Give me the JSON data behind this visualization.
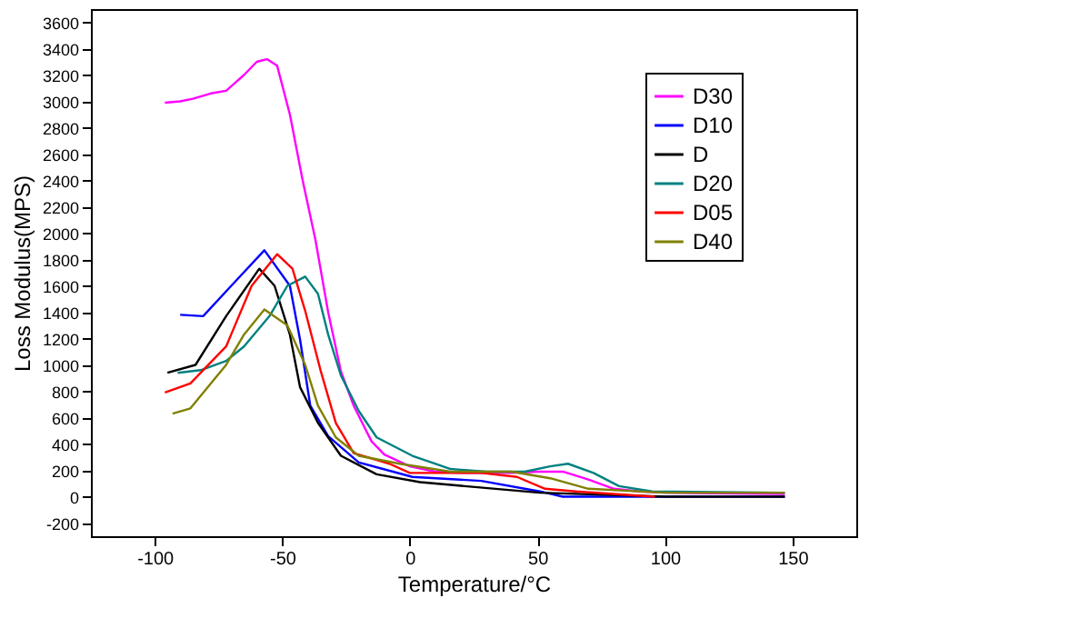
{
  "chart_data": {
    "type": "line",
    "xlabel": "Temperature/°C",
    "ylabel": "Loss Modulus(MPS)",
    "xlim": [
      -125,
      175
    ],
    "xticks": [
      -100,
      -50,
      0,
      50,
      100,
      150
    ],
    "ylim": [
      -300,
      3700
    ],
    "yticks": [
      -200,
      0,
      200,
      400,
      600,
      800,
      1000,
      1200,
      1400,
      1600,
      1800,
      2000,
      2200,
      2400,
      2600,
      2800,
      3000,
      3200,
      3400,
      3600
    ],
    "grid": false,
    "legend": "top right",
    "marker": "none",
    "line_style": "solid",
    "series": [
      {
        "name": "D30",
        "color": "#ff00ff",
        "x": [
          -96,
          -90,
          -85,
          -78,
          -72,
          -65,
          -60,
          -56,
          -52,
          -47,
          -42,
          -37,
          -32,
          -27,
          -22,
          -15,
          -10,
          0,
          10,
          20,
          40,
          50,
          60,
          70,
          80,
          90,
          100,
          147
        ],
        "values": [
          2990,
          3000,
          3020,
          3060,
          3080,
          3200,
          3300,
          3320,
          3270,
          2900,
          2400,
          1950,
          1400,
          950,
          690,
          420,
          320,
          230,
          190,
          180,
          180,
          190,
          190,
          130,
          60,
          40,
          30,
          20
        ]
      },
      {
        "name": "D10",
        "color": "#0000ff",
        "x": [
          -90,
          -81,
          -70,
          -57,
          -47,
          -43,
          -39,
          -32,
          -20,
          1,
          28,
          51,
          60,
          147
        ],
        "values": [
          1380,
          1370,
          1600,
          1870,
          1600,
          1190,
          690,
          460,
          260,
          150,
          120,
          40,
          0,
          0
        ]
      },
      {
        "name": "D",
        "color": "#000000",
        "x": [
          -95,
          -84,
          -72,
          -59,
          -53,
          -47,
          -43,
          -36,
          -27,
          -13,
          4,
          51,
          100,
          147
        ],
        "values": [
          940,
          1000,
          1370,
          1730,
          1600,
          1230,
          830,
          560,
          310,
          170,
          110,
          30,
          0,
          0
        ]
      },
      {
        "name": "D20",
        "color": "#008080",
        "x": [
          -91,
          -82,
          -72,
          -65,
          -55,
          -48,
          -41,
          -36,
          -32,
          -27,
          -20,
          -13,
          1,
          16,
          30,
          45,
          55,
          62,
          72,
          82,
          95,
          147
        ],
        "values": [
          940,
          960,
          1030,
          1140,
          1370,
          1600,
          1670,
          1540,
          1230,
          920,
          650,
          450,
          310,
          210,
          190,
          190,
          230,
          250,
          180,
          80,
          40,
          30
        ]
      },
      {
        "name": "D05",
        "color": "#ff0000",
        "x": [
          -96,
          -86,
          -72,
          -62,
          -52,
          -46,
          -41,
          -35,
          -29,
          -22,
          -8,
          0,
          28,
          42,
          53,
          65,
          96
        ],
        "values": [
          790,
          860,
          1140,
          1600,
          1840,
          1730,
          1410,
          960,
          560,
          330,
          250,
          180,
          180,
          150,
          60,
          40,
          0
        ]
      },
      {
        "name": "D40",
        "color": "#808000",
        "x": [
          -93,
          -86,
          -72,
          -65,
          -57,
          -48,
          -41,
          -36,
          -29,
          -20,
          -4,
          16,
          40,
          55,
          70,
          100,
          147
        ],
        "values": [
          630,
          670,
          1000,
          1230,
          1420,
          1300,
          1000,
          690,
          450,
          310,
          250,
          190,
          190,
          140,
          60,
          30,
          30
        ]
      }
    ]
  }
}
